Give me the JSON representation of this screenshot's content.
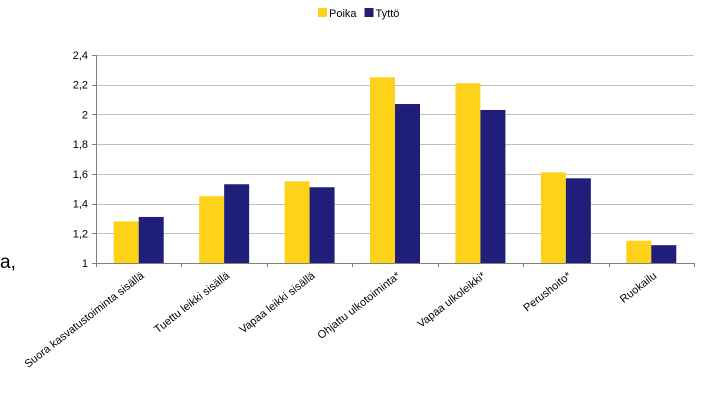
{
  "edge_fragment": "a,",
  "chart_data": {
    "type": "bar",
    "title": "",
    "xlabel": "",
    "ylabel": "",
    "ylim": [
      1,
      2.4
    ],
    "yticks": [
      "1",
      "1,2",
      "1,4",
      "1,6",
      "1,8",
      "2",
      "2,2",
      "2,4"
    ],
    "ytick_values": [
      1,
      1.2,
      1.4,
      1.6,
      1.8,
      2,
      2.2,
      2.4
    ],
    "grid": true,
    "legend_position": "top-center",
    "categories": [
      "Suora kasvatustoiminta sisällä",
      "Tuettu leikki sisällä",
      "Vapaa leikki sisällä",
      "Ohjattu ulkotoiminta*",
      "Vapaa ulkoleikki*",
      "Perushoito*",
      "Ruokailu"
    ],
    "series": [
      {
        "name": "Poika",
        "color": "#FFD21A",
        "values": [
          1.28,
          1.45,
          1.55,
          2.25,
          2.21,
          1.61,
          1.15
        ]
      },
      {
        "name": "Tyttö",
        "color": "#1F1F7A",
        "values": [
          1.31,
          1.53,
          1.51,
          2.07,
          2.03,
          1.57,
          1.12
        ]
      }
    ]
  }
}
